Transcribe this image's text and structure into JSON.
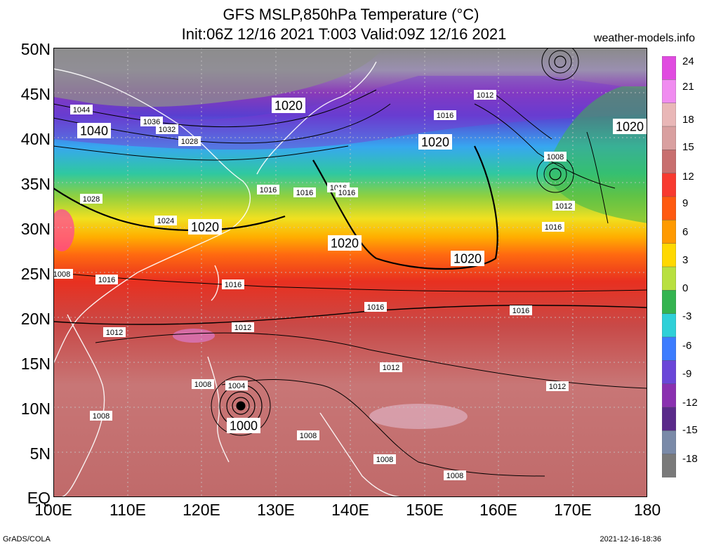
{
  "header": {
    "title": "GFS MSLP,850hPa Temperature (°C)",
    "subtitle": "Init:06Z 12/16 2021 T:003 Valid:09Z 12/16 2021",
    "site": "weather-models.info"
  },
  "footer": {
    "left": "GrADS/COLA",
    "right": "2021-12-16-18:36"
  },
  "axes": {
    "lat_labels": [
      "50N",
      "45N",
      "40N",
      "35N",
      "30N",
      "25N",
      "20N",
      "15N",
      "10N",
      "5N",
      "EQ"
    ],
    "lon_labels": [
      "100E",
      "110E",
      "120E",
      "130E",
      "140E",
      "150E",
      "160E",
      "170E",
      "180"
    ]
  },
  "colorbar": {
    "labels": [
      "24",
      "21",
      "18",
      "15",
      "12",
      "9",
      "6",
      "3",
      "0",
      "-3",
      "-6",
      "-9",
      "-12",
      "-15",
      "-18"
    ],
    "colors": [
      "#e04be0",
      "#f08cf0",
      "#e9b7b7",
      "#d9a0a0",
      "#c86f6f",
      "#f83a30",
      "#ff5a10",
      "#ff9a00",
      "#ffd800",
      "#b8e040",
      "#34b450",
      "#2fd0d8",
      "#3c7cff",
      "#6a46d8",
      "#8a30b0",
      "#5a2a8a",
      "#7a8aa8",
      "#7a7a7a"
    ]
  },
  "isobars": [
    {
      "label": "1044",
      "big": false
    },
    {
      "label": "1040",
      "big": true
    },
    {
      "label": "1036",
      "big": false
    },
    {
      "label": "1032",
      "big": false
    },
    {
      "label": "1028",
      "big": false
    },
    {
      "label": "1020",
      "big": true
    },
    {
      "label": "1012",
      "big": false
    },
    {
      "label": "1016",
      "big": false
    },
    {
      "label": "1016",
      "big": false
    },
    {
      "label": "1020",
      "big": true
    },
    {
      "label": "1016",
      "big": false
    },
    {
      "label": "1008",
      "big": false
    },
    {
      "label": "1028",
      "big": false
    },
    {
      "label": "1024",
      "big": false
    },
    {
      "label": "1020",
      "big": true
    },
    {
      "label": "1016",
      "big": false
    },
    {
      "label": "1016",
      "big": false
    },
    {
      "label": "1020",
      "big": true
    },
    {
      "label": "1020",
      "big": true
    },
    {
      "label": "1012",
      "big": false
    },
    {
      "label": "1016",
      "big": false
    },
    {
      "label": "1008",
      "big": false
    },
    {
      "label": "1016",
      "big": false
    },
    {
      "label": "1016",
      "big": false
    },
    {
      "label": "1016",
      "big": false
    },
    {
      "label": "1016",
      "big": false
    },
    {
      "label": "1012",
      "big": false
    },
    {
      "label": "1012",
      "big": false
    },
    {
      "label": "1012",
      "big": false
    },
    {
      "label": "1012",
      "big": false
    },
    {
      "label": "1008",
      "big": false
    },
    {
      "label": "1004",
      "big": false
    },
    {
      "label": "1000",
      "big": true
    },
    {
      "label": "1008",
      "big": false
    },
    {
      "label": "1008",
      "big": false
    },
    {
      "label": "1008",
      "big": false
    },
    {
      "label": "1008",
      "big": false
    },
    {
      "label": "1020",
      "big": true
    }
  ]
}
